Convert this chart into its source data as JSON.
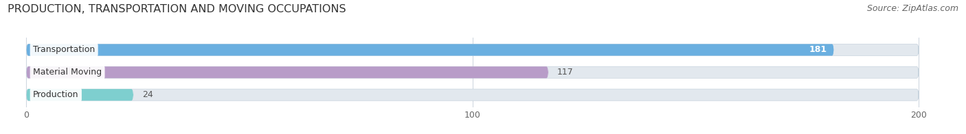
{
  "title": "PRODUCTION, TRANSPORTATION AND MOVING OCCUPATIONS",
  "source": "Source: ZipAtlas.com",
  "categories": [
    "Transportation",
    "Material Moving",
    "Production"
  ],
  "values": [
    181,
    117,
    24
  ],
  "bar_colors": [
    "#6aafe0",
    "#b89cc8",
    "#7ecfcf"
  ],
  "bar_bg_color": "#e2e8ee",
  "value_label_inside": [
    true,
    false,
    false
  ],
  "value_label_colors_inside": [
    "white",
    "#555555",
    "#555555"
  ],
  "xlim": [
    0,
    200
  ],
  "xticks": [
    0,
    100,
    200
  ],
  "figsize": [
    14.06,
    1.96
  ],
  "dpi": 100,
  "title_fontsize": 11.5,
  "label_fontsize": 9,
  "tick_fontsize": 9,
  "source_fontsize": 9,
  "bar_height": 0.52,
  "bg_color": "#ffffff",
  "grid_color": "#d0d8e0"
}
